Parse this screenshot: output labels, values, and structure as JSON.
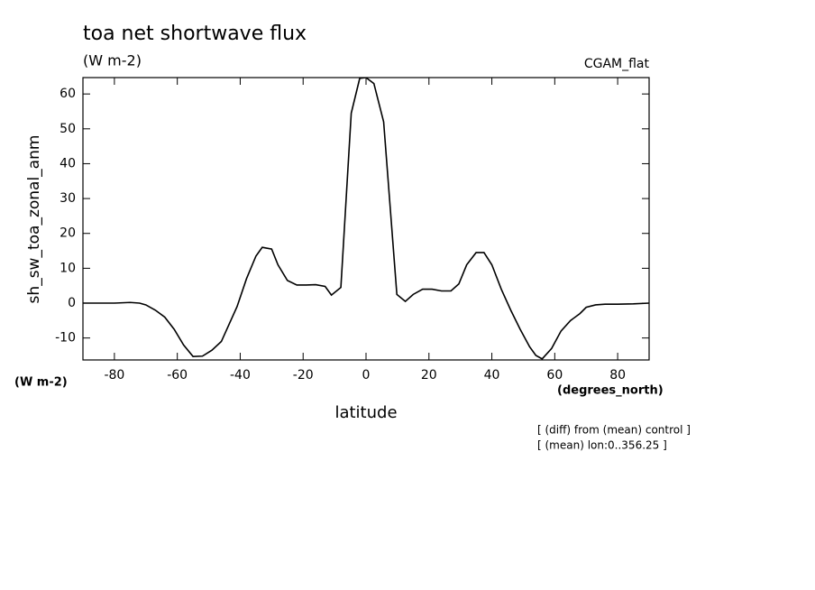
{
  "chart_data": {
    "type": "line",
    "title": "toa net shortwave flux",
    "subtitle": "(W m-2)",
    "label_right": "CGAM_flat",
    "ylabel": "sh_sw_toa_zonal_anm",
    "yunits": "(W m-2)",
    "xunits": "(degrees_north)",
    "xlabel": "latitude",
    "notes": [
      "[ (diff) from (mean) control ]",
      "[ (mean) lon:0..356.25 ]"
    ],
    "xlim": [
      -90,
      90
    ],
    "ylim": [
      -16.3,
      64.7
    ],
    "xticks": [
      -80,
      -60,
      -40,
      -20,
      0,
      20,
      40,
      60,
      80
    ],
    "yticks": [
      -10,
      0,
      10,
      20,
      30,
      40,
      50,
      60
    ],
    "color": "#000000",
    "x": [
      -90,
      -80,
      -75,
      -72,
      -70,
      -67,
      -64,
      -61,
      -58,
      -55,
      -52,
      -49,
      -46,
      -44,
      -41,
      -38,
      -35,
      -33,
      -30,
      -28,
      -25,
      -22,
      -19,
      -16,
      -13,
      -11,
      -8,
      -4.7,
      -2,
      0,
      2.5,
      5.6,
      9.8,
      12.5,
      15,
      18,
      21,
      24,
      27,
      29.5,
      32,
      35,
      37.5,
      40,
      43,
      46,
      49,
      52,
      54,
      56,
      59,
      62,
      65,
      68,
      70,
      73,
      76,
      80,
      85,
      90
    ],
    "series": [
      {
        "name": "sh_sw_toa_zonal_anm",
        "color": "#000000",
        "values": [
          0,
          0,
          0.2,
          0,
          -0.5,
          -2,
          -4,
          -7.5,
          -12,
          -15.3,
          -15.2,
          -13.5,
          -11,
          -7,
          -1,
          7,
          13.5,
          16,
          15.5,
          11,
          6.5,
          5.2,
          5.2,
          5.3,
          4.8,
          2.3,
          4.5,
          54.5,
          64.5,
          64.7,
          63,
          52,
          2.5,
          0.5,
          2.5,
          4,
          4,
          3.5,
          3.5,
          5.5,
          11,
          14.5,
          14.5,
          11,
          4,
          -2,
          -7.5,
          -12.5,
          -15,
          -16,
          -13,
          -8,
          -5,
          -3,
          -1.2,
          -0.5,
          -0.3,
          -0.3,
          -0.2,
          0
        ]
      }
    ]
  }
}
